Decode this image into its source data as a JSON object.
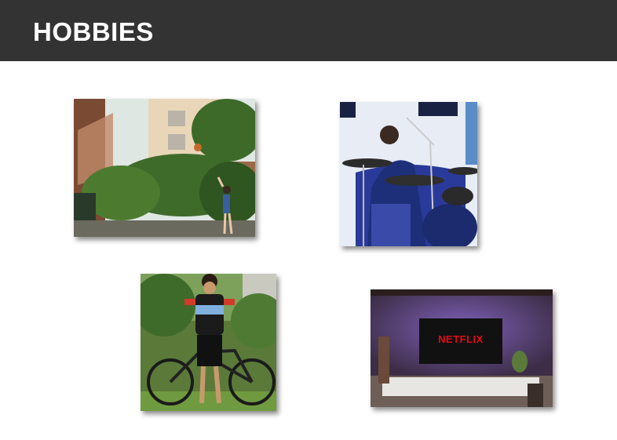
{
  "slide": {
    "title": "HOBBIES"
  },
  "photos": [
    {
      "subject": "basketball",
      "icon": "basketball-photo"
    },
    {
      "subject": "drums",
      "icon": "drums-photo"
    },
    {
      "subject": "cycling",
      "icon": "cycling-photo"
    },
    {
      "subject": "netflix",
      "icon": "netflix-photo",
      "screen_text": "NETFLIX"
    }
  ],
  "colors": {
    "header_bg": "#333333",
    "title_text": "#ffffff",
    "page_bg": "#ffffff",
    "netflix_red": "#e50914"
  }
}
